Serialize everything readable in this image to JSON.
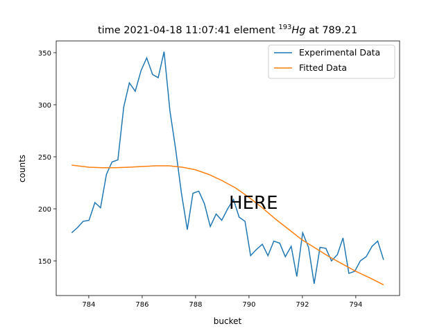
{
  "chart_data": {
    "type": "line",
    "title": {
      "before": "time 2021-04-18 11:07:41 element ",
      "superscript": "193",
      "italic": "Hg",
      "after": " at 789.21"
    },
    "x_label": "bucket",
    "y_label": "counts",
    "xlim": [
      782.78,
      795.64
    ],
    "ylim": [
      116.7,
      361.3
    ],
    "xticks": [
      784,
      786,
      788,
      790,
      792,
      794
    ],
    "yticks": [
      150,
      200,
      250,
      300,
      350
    ],
    "grid": false,
    "legend": "upper right",
    "series": [
      {
        "name": "Experimental Data",
        "color": "#1f77b4",
        "x": [
          783.36,
          783.58,
          783.79,
          784.01,
          784.23,
          784.44,
          784.66,
          784.87,
          785.09,
          785.31,
          785.52,
          785.74,
          785.96,
          786.17,
          786.39,
          786.6,
          786.82,
          787.04,
          787.25,
          787.47,
          787.69,
          787.9,
          788.12,
          788.33,
          788.55,
          788.77,
          788.98,
          789.2,
          789.42,
          789.63,
          789.85,
          790.06,
          790.28,
          790.5,
          790.71,
          790.93,
          791.15,
          791.36,
          791.58,
          791.79,
          792.01,
          792.23,
          792.44,
          792.66,
          792.88,
          793.09,
          793.31,
          793.52,
          793.74,
          793.96,
          794.17,
          794.39,
          794.61,
          794.82,
          795.04
        ],
        "values": [
          177,
          182,
          188,
          189,
          206,
          201,
          233,
          245,
          247,
          298,
          321,
          313,
          333,
          345,
          329,
          326,
          351,
          294,
          258,
          215,
          180,
          215,
          217,
          205,
          183,
          195,
          189,
          200,
          209,
          192,
          188,
          155,
          161,
          166,
          155,
          169,
          167,
          154,
          164,
          135,
          177,
          163,
          128,
          163,
          162,
          150,
          156,
          172,
          138,
          140,
          150,
          154,
          164,
          169,
          151
        ]
      },
      {
        "name": "Fitted Data",
        "color": "#ff7f0e",
        "x": [
          783.36,
          784,
          784.5,
          785,
          785.5,
          786,
          786.5,
          787,
          787.5,
          788,
          788.5,
          789,
          789.5,
          790,
          790.5,
          791,
          791.5,
          792,
          792.5,
          793,
          793.5,
          794,
          794.5,
          795.04
        ],
        "values": [
          242,
          240,
          239.5,
          239.5,
          240,
          240.7,
          241.3,
          241.3,
          240,
          237.5,
          233,
          227,
          220,
          211,
          201,
          190,
          180,
          170,
          162,
          154,
          147,
          140,
          134,
          127
        ]
      }
    ],
    "annotation": {
      "text": "HERE",
      "x": 789.25,
      "y": 200,
      "color": "#ff0000"
    }
  }
}
